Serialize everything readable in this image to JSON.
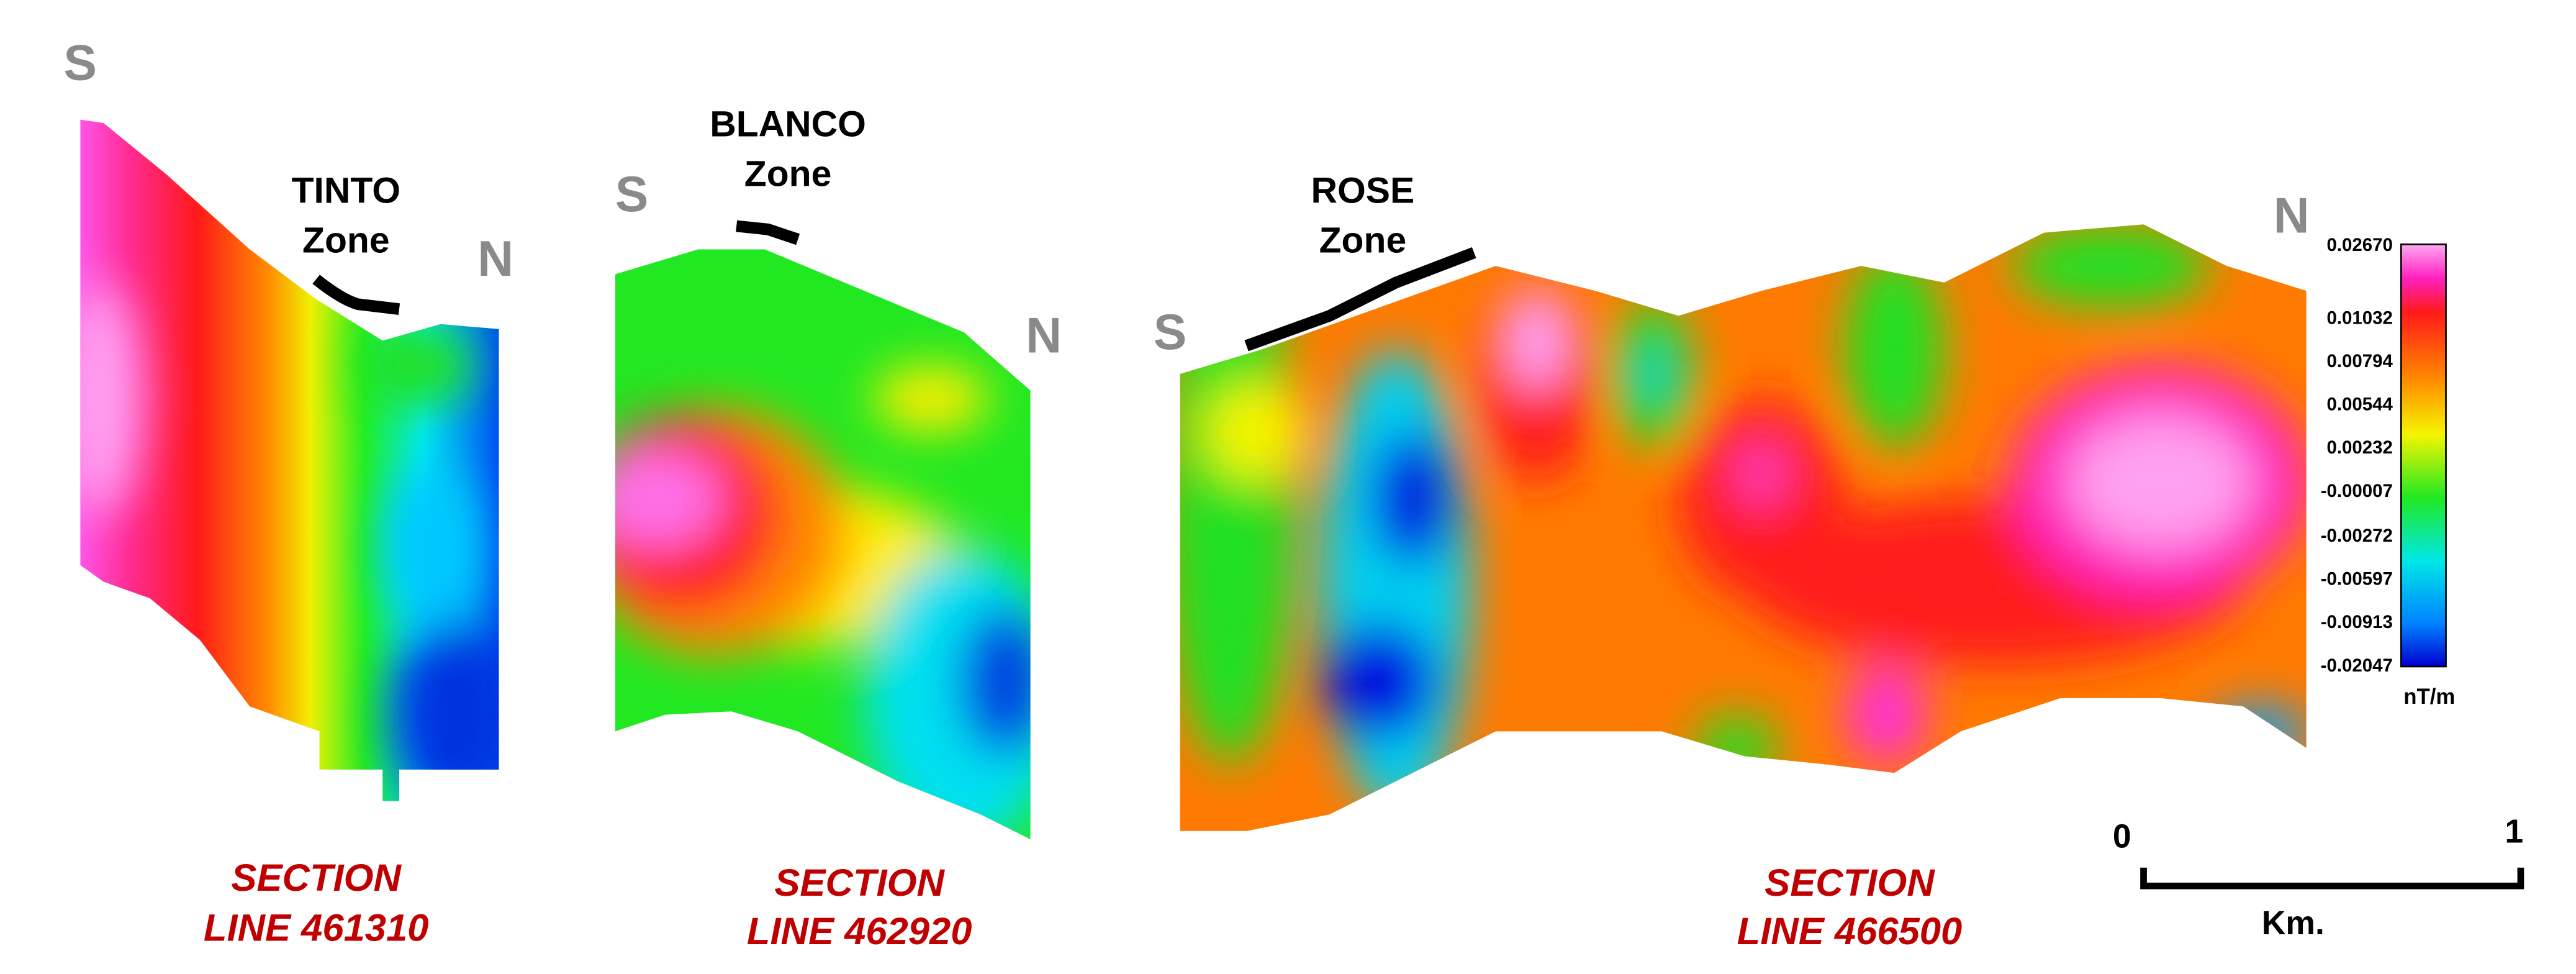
{
  "sections": [
    {
      "south": "S",
      "north": "N",
      "zone": [
        "TINTO",
        "Zone"
      ],
      "line": [
        "SECTION",
        "LINE 461310"
      ]
    },
    {
      "south": "S",
      "north": "N",
      "zone": [
        "BLANCO",
        "Zone"
      ],
      "line": [
        "SECTION",
        "LINE 462920"
      ]
    },
    {
      "south": "S",
      "north": "N",
      "zone": [
        "ROSE",
        "Zone"
      ],
      "line": [
        "SECTION",
        "LINE 466500"
      ]
    }
  ],
  "colorbar": {
    "labels": [
      "0.02670",
      "0.01032",
      "0.00794",
      "0.00544",
      "0.00232",
      "-0.00007",
      "-0.00272",
      "-0.00597",
      "-0.00913",
      "-0.02047"
    ],
    "unit": "nT/m"
  },
  "scale_bar": {
    "start": "0",
    "end": "1",
    "unit": "Km."
  }
}
